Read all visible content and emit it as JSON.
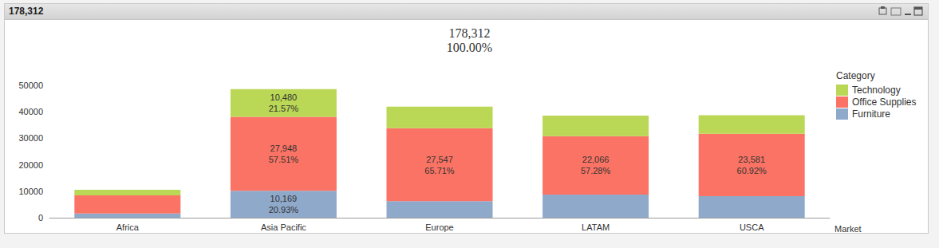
{
  "chart_data": {
    "type": "bar",
    "window_title": "178,312",
    "title": "178,312",
    "subtitle": "100.00%",
    "x_label": "Market",
    "legend_title": "Category",
    "categories": [
      "Africa",
      "Asia Pacific",
      "Europe",
      "LATAM",
      "USCA"
    ],
    "series": [
      {
        "name": "Furniture",
        "color": "#8fa9cb",
        "values": [
          1550,
          10169,
          6250,
          8735,
          8130
        ],
        "value_labels": [
          null,
          "10,169",
          null,
          null,
          null
        ],
        "share_labels": [
          null,
          "20.93%",
          null,
          null,
          null
        ]
      },
      {
        "name": "Office Supplies",
        "color": "#fb7364",
        "values": [
          6900,
          27948,
          27547,
          22066,
          23581
        ],
        "value_labels": [
          null,
          "27,948",
          "27,547",
          "22,066",
          "23,581"
        ],
        "share_labels": [
          null,
          "57.51%",
          "65.71%",
          "57.28%",
          "60.92%"
        ]
      },
      {
        "name": "Technology",
        "color": "#bad755",
        "values": [
          2112,
          10480,
          8125,
          7722,
          6997
        ],
        "value_labels": [
          null,
          "10,480",
          null,
          null,
          null
        ],
        "share_labels": [
          null,
          "21.57%",
          null,
          null,
          null
        ]
      }
    ],
    "ylim": [
      0,
      50000
    ],
    "yticks": [
      0,
      10000,
      20000,
      30000,
      40000,
      50000
    ],
    "grid": false,
    "stacked": true,
    "data_labels": true,
    "legend": "right"
  }
}
